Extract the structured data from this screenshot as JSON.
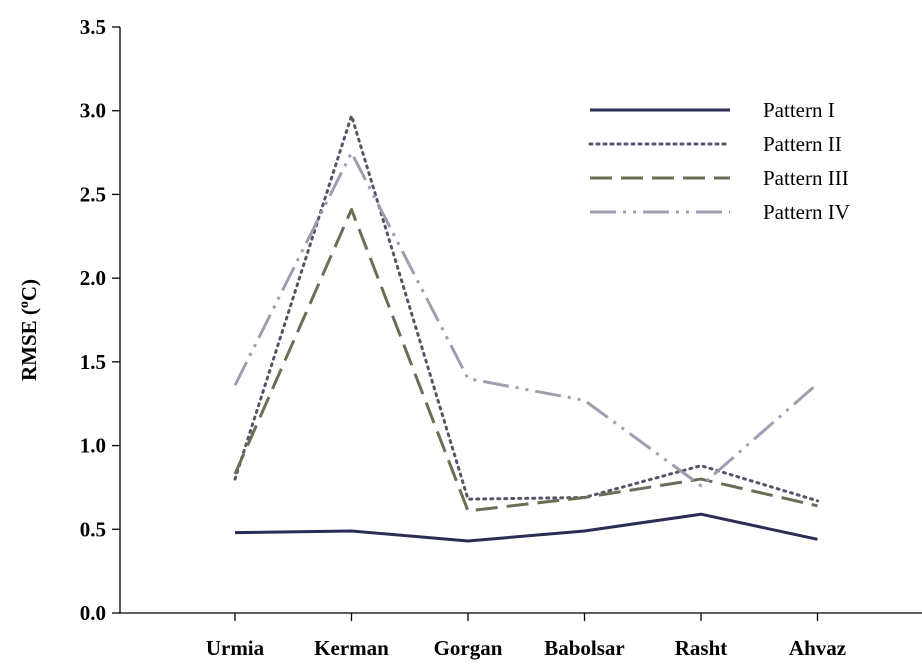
{
  "chart_data": {
    "type": "line",
    "categories": [
      "Urmia",
      "Kerman",
      "Gorgan",
      "Babolsar",
      "Rasht",
      "Ahvaz"
    ],
    "ylabel_main": "RMSE (",
    "ylabel_sup": "o",
    "ylabel_end": "C)",
    "ylim": [
      0,
      3.5
    ],
    "yticks": [
      "0.0",
      "0.5",
      "1.0",
      "1.5",
      "2.0",
      "2.5",
      "3.0",
      "3.5"
    ],
    "grid": false,
    "legend_position": "top-right",
    "series": [
      {
        "name": "Pattern I",
        "values": [
          0.48,
          0.49,
          0.43,
          0.49,
          0.59,
          0.44
        ],
        "color": "#2b2d55",
        "dash": "solid"
      },
      {
        "name": "Pattern II",
        "values": [
          0.8,
          2.97,
          0.68,
          0.69,
          0.88,
          0.67
        ],
        "color": "#555569",
        "dash": "dotted"
      },
      {
        "name": "Pattern III",
        "values": [
          0.83,
          2.41,
          0.61,
          0.69,
          0.8,
          0.64
        ],
        "color": "#6b6e55",
        "dash": "dashed"
      },
      {
        "name": "Pattern IV",
        "values": [
          1.36,
          2.75,
          1.4,
          1.27,
          0.76,
          1.37
        ],
        "color": "#9e9eb0",
        "dash": "dashdotdot"
      }
    ]
  }
}
